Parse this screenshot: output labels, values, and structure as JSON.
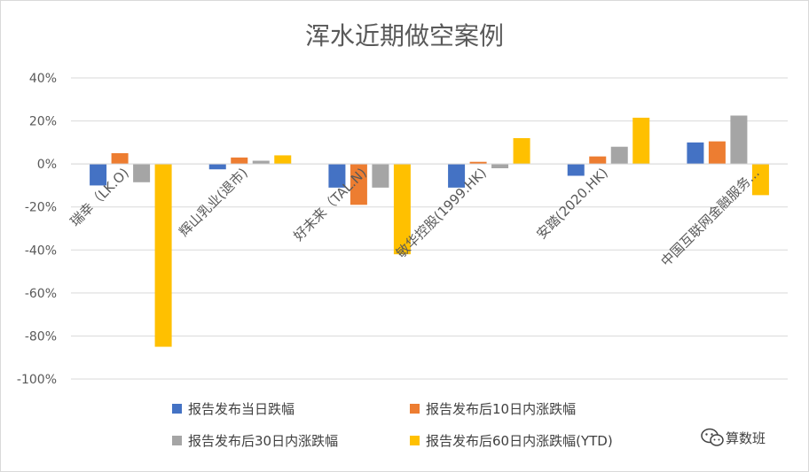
{
  "chart_data": {
    "type": "bar",
    "title": "浑水近期做空案例",
    "categories": [
      "瑞幸（LK.O)",
      "辉山乳业(退市)",
      "好未来（TAL.N)",
      "敏华控股(1999.HK)",
      "安踏(2020.HK)",
      "中国互联网金融服务..."
    ],
    "series": [
      {
        "name": "报告发布当日跌幅",
        "color": "#4472C4",
        "values": [
          -10,
          -2.5,
          -11,
          -11,
          -5.5,
          10
        ]
      },
      {
        "name": "报告发布后10日内涨跌幅",
        "color": "#ED7D31",
        "values": [
          5,
          3,
          -19,
          1,
          3.5,
          10.5
        ]
      },
      {
        "name": "报告发布后30日内涨跌幅",
        "color": "#A5A5A5",
        "values": [
          -8.5,
          1.5,
          -11,
          -2,
          8,
          22.5
        ]
      },
      {
        "name": "报告发布后60日内涨跌幅(YTD)",
        "color": "#FFC000",
        "values": [
          -85,
          4,
          -42,
          12,
          21.5,
          -14.5
        ]
      }
    ],
    "ylim": [
      -100,
      40
    ],
    "yticks": [
      -100,
      -80,
      -60,
      -40,
      -20,
      0,
      20,
      40
    ],
    "ytick_labels": [
      "-100%",
      "-80%",
      "-60%",
      "-40%",
      "-20%",
      "0%",
      "20%",
      "40%"
    ],
    "grid": true,
    "legend_position": "bottom"
  },
  "watermark": {
    "text": "算数班",
    "icon": "wechat-icon"
  }
}
